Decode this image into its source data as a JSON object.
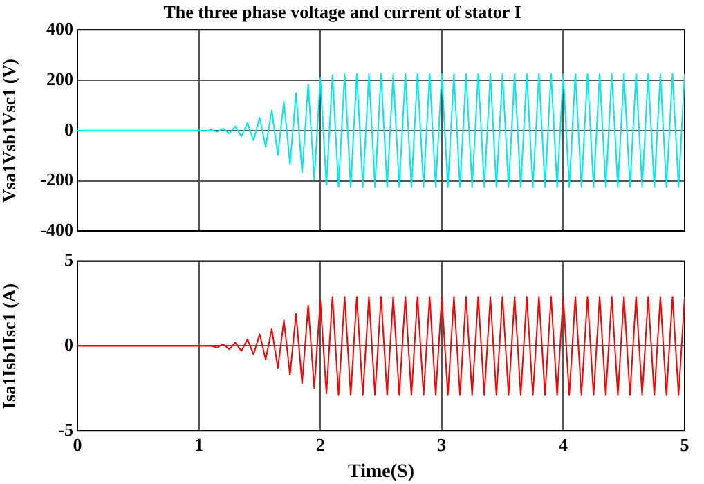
{
  "chart_data": [
    {
      "type": "line",
      "title": "The three phase voltage and current of stator I",
      "ylabel": "Vsa1Vsb1Vsc1 (V)",
      "xlim": [
        0,
        5
      ],
      "xticks": [
        0,
        1,
        2,
        3,
        4,
        5
      ],
      "ylim": [
        -400,
        400
      ],
      "yticks": [
        -400,
        -200,
        0,
        200,
        400
      ],
      "tick_labels": "y",
      "grid": true,
      "legend": false,
      "marker": "none",
      "x": [
        0,
        0.05,
        0.1,
        0.15,
        0.2,
        0.25,
        0.3,
        0.35,
        0.4,
        0.45,
        0.5,
        0.55,
        0.6,
        0.65,
        0.7,
        0.75,
        0.8,
        0.85,
        0.9,
        0.95,
        1,
        1.05,
        1.1,
        1.15,
        1.2,
        1.25,
        1.3,
        1.35,
        1.4,
        1.45,
        1.5,
        1.55,
        1.6,
        1.65,
        1.7,
        1.75,
        1.8,
        1.85,
        1.9,
        1.95,
        2,
        2.05,
        2.1,
        2.15,
        2.2,
        2.25,
        2.3,
        2.35,
        2.4,
        2.45,
        2.5,
        2.55,
        2.6,
        2.65,
        2.7,
        2.75,
        2.8,
        2.85,
        2.9,
        2.95,
        3,
        3.05,
        3.1,
        3.15,
        3.2,
        3.25,
        3.3,
        3.35,
        3.4,
        3.45,
        3.5,
        3.55,
        3.6,
        3.65,
        3.7,
        3.75,
        3.8,
        3.85,
        3.9,
        3.95,
        4,
        4.05,
        4.1,
        4.15,
        4.2,
        4.25,
        4.3,
        4.35,
        4.4,
        4.45,
        4.5,
        4.55,
        4.6,
        4.65,
        4.7,
        4.75,
        4.8,
        4.85,
        4.9,
        4.95,
        5
      ],
      "series": [
        {
          "color": "#00e8f0",
          "values": [
            0,
            0,
            0,
            0,
            0,
            0,
            0,
            0,
            0,
            0,
            0,
            0,
            0,
            0,
            0,
            0,
            0,
            0,
            0,
            0,
            0,
            -2,
            3,
            -5,
            8,
            -12,
            17,
            -23,
            30,
            -40,
            52,
            -65,
            80,
            -97,
            115,
            -133,
            150,
            -167,
            183,
            -197,
            208,
            -216,
            221,
            -224,
            225,
            -225,
            225,
            -225,
            225,
            -225,
            225,
            -225,
            225,
            -225,
            225,
            -225,
            225,
            -225,
            225,
            -225,
            225,
            -225,
            225,
            -225,
            225,
            -225,
            225,
            -225,
            225,
            -225,
            225,
            -225,
            225,
            -225,
            225,
            -225,
            225,
            -225,
            225,
            -225,
            225,
            -225,
            225,
            -225,
            225,
            -225,
            225,
            -225,
            225,
            -225,
            225,
            -225,
            225,
            -225,
            225,
            -225,
            225,
            -225,
            225,
            -225,
            225
          ]
        }
      ]
    },
    {
      "type": "line",
      "xlabel": "Time(S)",
      "ylabel": "Isa1Isb1Isc1 (A)",
      "xlim": [
        0,
        5
      ],
      "xticks": [
        0,
        1,
        2,
        3,
        4,
        5
      ],
      "ylim": [
        -5,
        5
      ],
      "yticks": [
        -5,
        0,
        5
      ],
      "grid": true,
      "legend": false,
      "marker": "none",
      "x": [
        0,
        0.05,
        0.1,
        0.15,
        0.2,
        0.25,
        0.3,
        0.35,
        0.4,
        0.45,
        0.5,
        0.55,
        0.6,
        0.65,
        0.7,
        0.75,
        0.8,
        0.85,
        0.9,
        0.95,
        1,
        1.05,
        1.1,
        1.15,
        1.2,
        1.25,
        1.3,
        1.35,
        1.4,
        1.45,
        1.5,
        1.55,
        1.6,
        1.65,
        1.7,
        1.75,
        1.8,
        1.85,
        1.9,
        1.95,
        2,
        2.05,
        2.1,
        2.15,
        2.2,
        2.25,
        2.3,
        2.35,
        2.4,
        2.45,
        2.5,
        2.55,
        2.6,
        2.65,
        2.7,
        2.75,
        2.8,
        2.85,
        2.9,
        2.95,
        3,
        3.05,
        3.1,
        3.15,
        3.2,
        3.25,
        3.3,
        3.35,
        3.4,
        3.45,
        3.5,
        3.55,
        3.6,
        3.65,
        3.7,
        3.75,
        3.8,
        3.85,
        3.9,
        3.95,
        4,
        4.05,
        4.1,
        4.15,
        4.2,
        4.25,
        4.3,
        4.35,
        4.4,
        4.45,
        4.5,
        4.55,
        4.6,
        4.65,
        4.7,
        4.75,
        4.8,
        4.85,
        4.9,
        4.95,
        5
      ],
      "series": [
        {
          "color": "#ff0000",
          "values": [
            0,
            0,
            0,
            0,
            0,
            0,
            0,
            0,
            0,
            0,
            0,
            0,
            0,
            0,
            0,
            0,
            0,
            0,
            0,
            0,
            0,
            0,
            0,
            -0.1,
            0.1,
            -0.2,
            0.2,
            -0.3,
            0.4,
            -0.5,
            0.7,
            -0.8,
            1,
            -1.3,
            1.5,
            -1.7,
            1.9,
            -2.2,
            2.4,
            -2.5,
            2.7,
            -2.8,
            2.9,
            -2.9,
            2.9,
            -2.9,
            2.9,
            -2.9,
            2.9,
            -2.9,
            2.9,
            -2.9,
            2.9,
            -2.9,
            2.9,
            -2.9,
            2.9,
            -2.9,
            2.9,
            -2.9,
            2.9,
            -2.9,
            2.9,
            -2.9,
            2.9,
            -2.9,
            2.9,
            -2.9,
            2.9,
            -2.9,
            2.9,
            -2.9,
            2.9,
            -2.9,
            2.9,
            -2.9,
            2.9,
            -2.9,
            2.9,
            -2.9,
            2.9,
            -2.9,
            2.9,
            -2.9,
            2.9,
            -2.9,
            2.9,
            -2.9,
            2.9,
            -2.9,
            2.9,
            -2.9,
            2.9,
            -2.9,
            2.9,
            -2.9,
            2.9,
            -2.9,
            2.9,
            -2.9,
            2.9
          ]
        }
      ]
    }
  ]
}
